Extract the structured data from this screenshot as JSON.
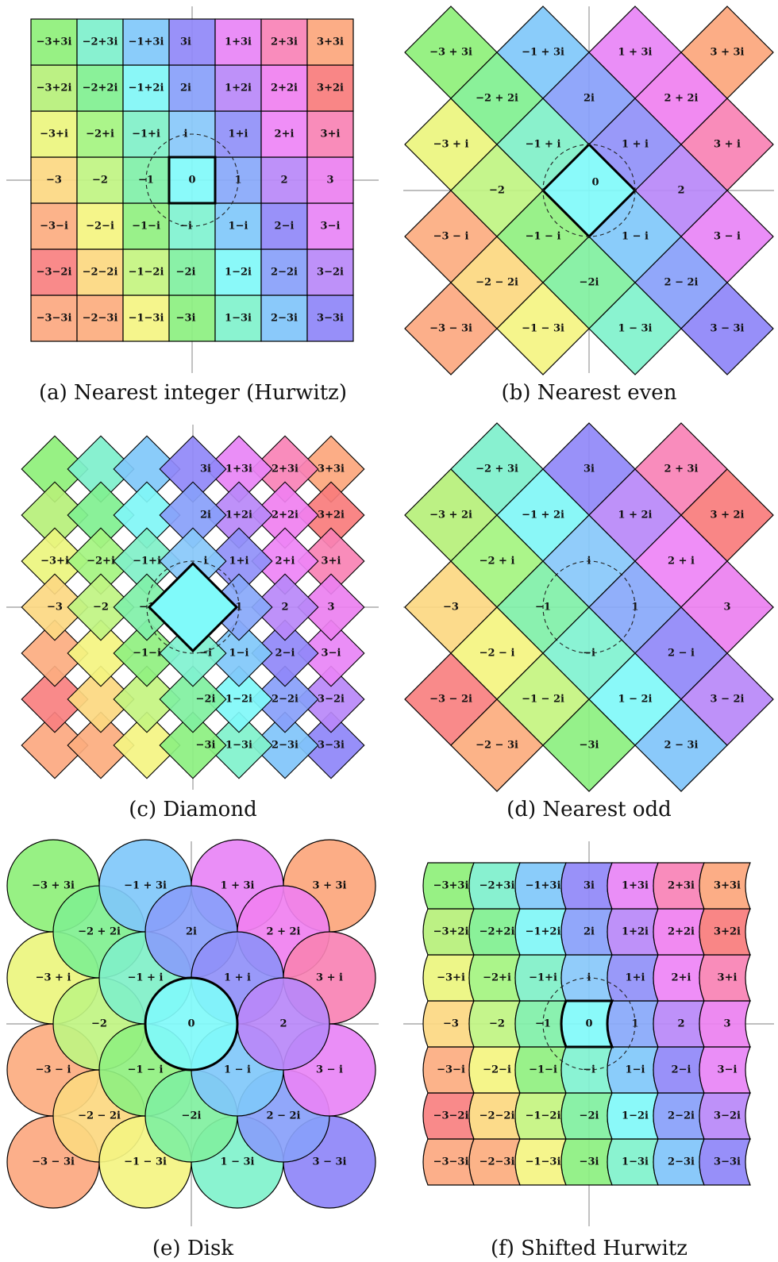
{
  "panels": [
    {
      "id": "a",
      "caption": "(a) Nearest integer (Hurwitz)"
    },
    {
      "id": "b",
      "caption": "(b) Nearest even"
    },
    {
      "id": "c",
      "caption": "(c) Diamond"
    },
    {
      "id": "d",
      "caption": "(d) Nearest odd"
    },
    {
      "id": "e",
      "caption": "(e) Disk"
    },
    {
      "id": "f",
      "caption": "(f) Shifted Hurwitz"
    }
  ],
  "colors": {
    "-3,3": "#8ef07a",
    "-2,3": "#7ef0cc",
    "-1,3": "#80c8fa",
    "0,3": "#9088f8",
    "1,3": "#e884f6",
    "2,3": "#f882b6",
    "3,3": "#fca67c",
    "-3,2": "#b6f07a",
    "-2,2": "#80f090",
    "-1,2": "#80f6f6",
    "0,2": "#88a0fa",
    "1,2": "#b888f8",
    "2,2": "#f080f0",
    "3,2": "#f87c7c",
    "-3,1": "#ecf57e",
    "-2,1": "#a4f480",
    "-1,1": "#80f0c8",
    "0,1": "#88c8fa",
    "1,1": "#9090f8",
    "2,1": "#ee84f6",
    "3,1": "#f882b4",
    "-3,0": "#fcd882",
    "-2,0": "#c0f482",
    "-1,0": "#80f0a8",
    "0,0": "#80fafa",
    "1,0": "#88a8fa",
    "2,0": "#b888f8",
    "3,0": "#ec80f0",
    "-3,-1": "#fcac80",
    "-2,-1": "#f4f480",
    "-1,-1": "#90f080",
    "0,-1": "#80f2d0",
    "1,-1": "#80c8fa",
    "2,-1": "#9088f8",
    "3,-1": "#e884f6",
    "-3,-2": "#f88080",
    "-2,-2": "#fcd880",
    "-1,-2": "#c4f480",
    "0,-2": "#80f0a0",
    "1,-2": "#80f8f8",
    "2,-2": "#88a0fa",
    "3,-2": "#b888f8",
    "-3,-3": "#fca880",
    "-2,-3": "#fcac7e",
    "-1,-3": "#f4f482",
    "0,-3": "#8cf080",
    "1,-3": "#80f2cc",
    "2,-3": "#80c4fa",
    "3,-3": "#8e86f8"
  },
  "labels": {
    "a": {
      "-3,3": "−3+3𝐢",
      "-2,3": "−2+3𝐢",
      "-1,3": "−1+3𝐢",
      "0,3": "3𝐢",
      "1,3": "1+3𝐢",
      "2,3": "2+3𝐢",
      "3,3": "3+3𝐢",
      "-3,2": "−3+2𝐢",
      "-2,2": "−2+2𝐢",
      "-1,2": "−1+2𝐢",
      "0,2": "2𝐢",
      "1,2": "1+2𝐢",
      "2,2": "2+2𝐢",
      "3,2": "3+2𝐢",
      "-3,1": "−3+𝐢",
      "-2,1": "−2+𝐢",
      "-1,1": "−1+𝐢",
      "0,1": "𝐢",
      "1,1": "1+𝐢",
      "2,1": "2+𝐢",
      "3,1": "3+𝐢",
      "-3,0": "−3",
      "-2,0": "−2",
      "-1,0": "−1",
      "0,0": "0",
      "1,0": "1",
      "2,0": "2",
      "3,0": "3",
      "-3,-1": "−3−𝐢",
      "-2,-1": "−2−𝐢",
      "-1,-1": "−1−𝐢",
      "0,-1": "−𝐢",
      "1,-1": "1−𝐢",
      "2,-1": "2−𝐢",
      "3,-1": "3−𝐢",
      "-3,-2": "−3−2𝐢",
      "-2,-2": "−2−2𝐢",
      "-1,-2": "−1−2𝐢",
      "0,-2": "−2𝐢",
      "1,-2": "1−2𝐢",
      "2,-2": "2−2𝐢",
      "3,-2": "3−2𝐢",
      "-3,-3": "−3−3𝐢",
      "-2,-3": "−2−3𝐢",
      "-1,-3": "−1−3𝐢",
      "0,-3": "−3𝐢",
      "1,-3": "1−3𝐢",
      "2,-3": "2−3𝐢",
      "3,-3": "3−3𝐢"
    },
    "b": {
      "-3,3": "−3 + 3𝐢",
      "-1,3": "−1 + 3𝐢",
      "1,3": "1 + 3𝐢",
      "3,3": "3 + 3𝐢",
      "-2,2": "−2 + 2𝐢",
      "0,2": "2𝐢",
      "2,2": "2 + 2𝐢",
      "-3,1": "−3 + 𝐢",
      "-1,1": "−1 + 𝐢",
      "1,1": "1 + 𝐢",
      "3,1": "3 + 𝐢",
      "-2,0": "−2",
      "0,0": "0",
      "2,0": "2",
      "-3,-1": "−3 − 𝐢",
      "-1,-1": "−1 − 𝐢",
      "1,-1": "1 − 𝐢",
      "3,-1": "3 − 𝐢",
      "-2,-2": "−2 − 2𝐢",
      "0,-2": "−2𝐢",
      "2,-2": "2 − 2𝐢",
      "-3,-3": "−3 − 3𝐢",
      "-1,-3": "−1 − 3𝐢",
      "1,-3": "1 − 3𝐢",
      "3,-3": "3 − 3𝐢"
    },
    "c": {
      "0,3": "3𝐢",
      "1,3": "1+3𝐢",
      "2,3": "2+3𝐢",
      "3,3": "3+3𝐢",
      "0,2": "2𝐢",
      "1,2": "1+2𝐢",
      "2,2": "2+2𝐢",
      "3,2": "3+2𝐢",
      "-3,1": "−3+𝐢",
      "-2,1": "−2+𝐢",
      "-1,1": "−1+𝐢",
      "0,1": "𝐢",
      "1,1": "1+𝐢",
      "2,1": "2+𝐢",
      "3,1": "3+𝐢",
      "-3,0": "−3",
      "-2,0": "−2",
      "-1,0": "−1",
      "1,0": "1",
      "2,0": "2",
      "3,0": "3",
      "-1,-1": "−1−𝐢",
      "0,-1": "−𝐢",
      "1,-1": "1−𝐢",
      "2,-1": "2−𝐢",
      "3,-1": "3−𝐢",
      "0,-2": "−2𝐢",
      "1,-2": "1−2𝐢",
      "2,-2": "2−2𝐢",
      "3,-2": "3−2𝐢",
      "0,-3": "−3𝐢",
      "1,-3": "1−3𝐢",
      "2,-3": "2−3𝐢",
      "3,-3": "3−3𝐢"
    },
    "d": {
      "-2,3": "−2 + 3𝐢",
      "0,3": "3𝐢",
      "2,3": "2 + 3𝐢",
      "-3,2": "−3 + 2𝐢",
      "-1,2": "−1 + 2𝐢",
      "1,2": "1 + 2𝐢",
      "3,2": "3 + 2𝐢",
      "-2,1": "−2 + 𝐢",
      "0,1": "𝐢",
      "2,1": "2 + 𝐢",
      "-3,0": "−3",
      "-1,0": "−1",
      "1,0": "1",
      "3,0": "3",
      "-2,-1": "−2 − 𝐢",
      "0,-1": "−𝐢",
      "2,-1": "2 − 𝐢",
      "-3,-2": "−3 − 2𝐢",
      "-1,-2": "−1 − 2𝐢",
      "1,-2": "1 − 2𝐢",
      "3,-2": "3 − 2𝐢",
      "-2,-3": "−2 − 3𝐢",
      "0,-3": "−3𝐢",
      "2,-3": "2 − 3𝐢"
    },
    "e": {
      "-3,3": "−3 + 3𝐢",
      "-1,3": "−1 + 3𝐢",
      "1,3": "1 + 3𝐢",
      "3,3": "3 + 3𝐢",
      "-2,2": "−2 + 2𝐢",
      "0,2": "2𝐢",
      "2,2": "2 + 2𝐢",
      "-3,1": "−3 + 𝐢",
      "-1,1": "−1 + 𝐢",
      "1,1": "1 + 𝐢",
      "3,1": "3 + 𝐢",
      "-2,0": "−2",
      "0,0": "0",
      "2,0": "2",
      "-3,-1": "−3 − 𝐢",
      "-1,-1": "−1 − 𝐢",
      "1,-1": "1 − 𝐢",
      "3,-1": "3 − 𝐢",
      "-2,-2": "−2 − 2𝐢",
      "0,-2": "−2𝐢",
      "2,-2": "2 − 2𝐢",
      "-3,-3": "−3 − 3𝐢",
      "-1,-3": "−1 − 3𝐢",
      "1,-3": "1 − 3𝐢",
      "3,-3": "3 − 3𝐢"
    },
    "f": {
      "-3,3": "−3+3𝐢",
      "-2,3": "−2+3𝐢",
      "-1,3": "−1+3𝐢",
      "0,3": "3𝐢",
      "1,3": "1+3𝐢",
      "2,3": "2+3𝐢",
      "3,3": "3+3𝐢",
      "-3,2": "−3+2𝐢",
      "-2,2": "−2+2𝐢",
      "-1,2": "−1+2𝐢",
      "0,2": "2𝐢",
      "1,2": "1+2𝐢",
      "2,2": "2+2𝐢",
      "3,2": "3+2𝐢",
      "-3,1": "−3+𝐢",
      "-2,1": "−2+𝐢",
      "-1,1": "−1+𝐢",
      "0,1": "𝐢",
      "1,1": "1+𝐢",
      "2,1": "2+𝐢",
      "3,1": "3+𝐢",
      "-3,0": "−3",
      "-2,0": "−2",
      "-1,0": "−1",
      "0,0": "0",
      "1,0": "1",
      "2,0": "2",
      "3,0": "3",
      "-3,-1": "−3−𝐢",
      "-2,-1": "−2−𝐢",
      "-1,-1": "−1−𝐢",
      "0,-1": "−𝐢",
      "1,-1": "1−𝐢",
      "2,-1": "2−𝐢",
      "3,-1": "3−𝐢",
      "-3,-2": "−3−2𝐢",
      "-2,-2": "−2−2𝐢",
      "-1,-2": "−1−2𝐢",
      "0,-2": "−2𝐢",
      "1,-2": "1−2𝐢",
      "2,-2": "2−2𝐢",
      "3,-2": "3−2𝐢",
      "-3,-3": "−3−3𝐢",
      "-2,-3": "−2−3𝐢",
      "-1,-3": "−1−3𝐢",
      "0,-3": "−3𝐢",
      "1,-3": "1−3𝐢",
      "2,-3": "2−3𝐢",
      "3,-3": "3−3𝐢"
    }
  }
}
